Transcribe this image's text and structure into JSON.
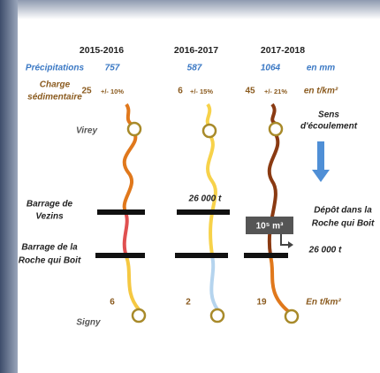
{
  "years": [
    "2015-2016",
    "2016-2017",
    "2017-2018"
  ],
  "precipitation": {
    "label": "Précipitations",
    "values": [
      "757",
      "587",
      "1064"
    ],
    "unit": "en mm"
  },
  "sediment": {
    "label": [
      "Charge",
      "sédimentaire"
    ],
    "values": [
      "25",
      "6",
      "45"
    ],
    "errors": [
      "+/- 10%",
      "+/- 15%",
      "+/- 21%"
    ],
    "unit": "en t/km²"
  },
  "places": {
    "top": "Virey",
    "bottom": "Signy"
  },
  "flow": [
    "Sens",
    "d'écoulement"
  ],
  "dam1": [
    "Barrage de",
    "Vezins"
  ],
  "dam2": [
    "Barrage de la",
    "Roche qui Boit"
  ],
  "deposit_2016": "26 000 t",
  "deposit_label": [
    "Dépôt dans la",
    "Roche qui Boit"
  ],
  "volume": "10⁵ m³",
  "deposit_2017": "26 000 t",
  "bottom_values": [
    "6",
    "2",
    "19"
  ],
  "bottom_unit": "En t/km²"
}
